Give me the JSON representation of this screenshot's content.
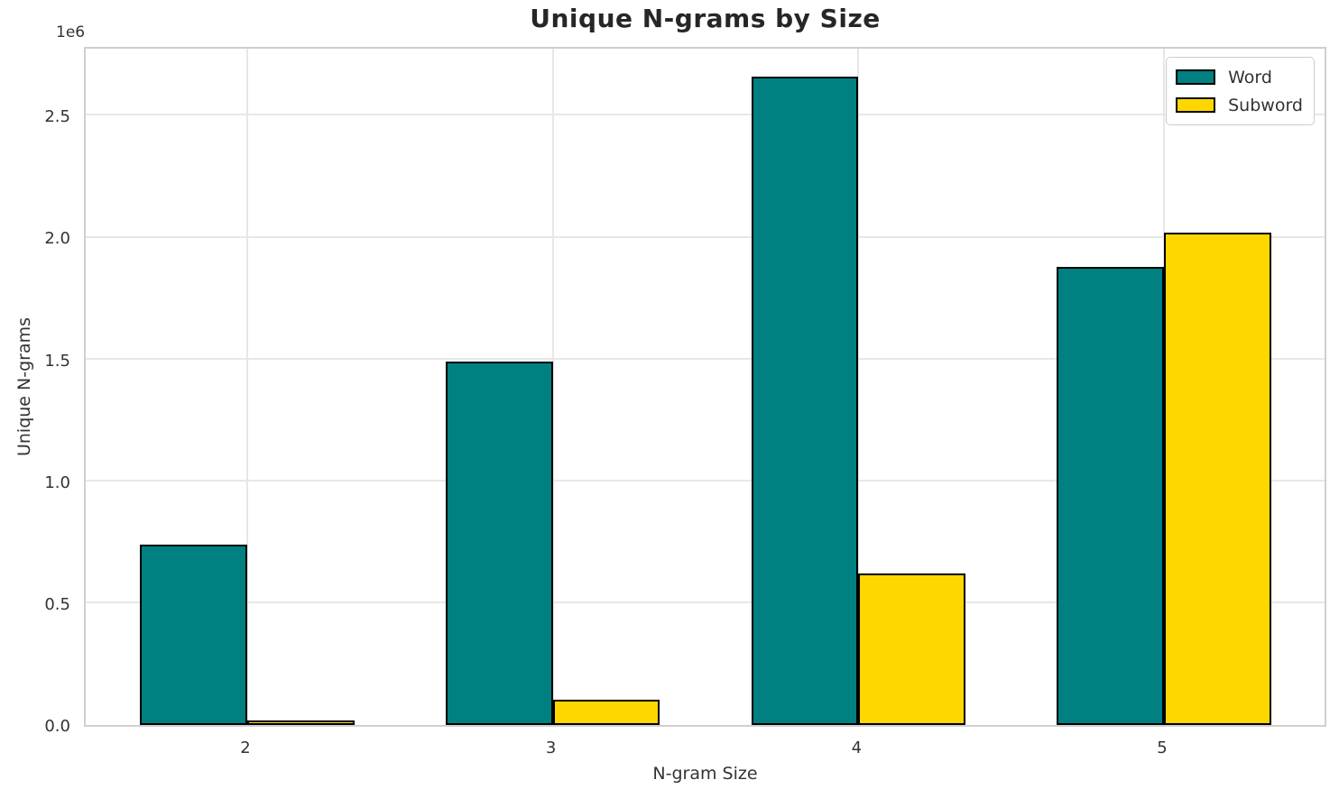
{
  "chart_data": {
    "type": "bar",
    "title": "Unique N-grams by Size",
    "xlabel": "N-gram Size",
    "ylabel": "Unique N-grams",
    "y_offset_label": "1e6",
    "categories": [
      "2",
      "3",
      "4",
      "5"
    ],
    "series": [
      {
        "name": "Word",
        "color": "#008080",
        "edge_color": "#000000",
        "values": [
          740000,
          1490000,
          2660000,
          1880000
        ]
      },
      {
        "name": "Subword",
        "color": "#FFD700",
        "edge_color": "#000000",
        "values": [
          18000,
          105000,
          620000,
          2020000
        ]
      }
    ],
    "ylim": [
      0,
      2790000
    ],
    "yticks": [
      {
        "value": 0,
        "label": "0.0"
      },
      {
        "value": 500000,
        "label": "0.5"
      },
      {
        "value": 1000000,
        "label": "1.0"
      },
      {
        "value": 1500000,
        "label": "1.5"
      },
      {
        "value": 2000000,
        "label": "2.0"
      },
      {
        "value": 2500000,
        "label": "2.5"
      }
    ],
    "grid": true,
    "bar_width_units": 0.35,
    "legend": {
      "position": "upper right",
      "entries": [
        "Word",
        "Subword"
      ]
    }
  },
  "colors": {
    "background": "#ffffff",
    "grid": "#e7e7e7",
    "spine": "#cfcfcf",
    "tick_text": "#333333",
    "title_text": "#262626",
    "bar_edge": "#000000"
  }
}
